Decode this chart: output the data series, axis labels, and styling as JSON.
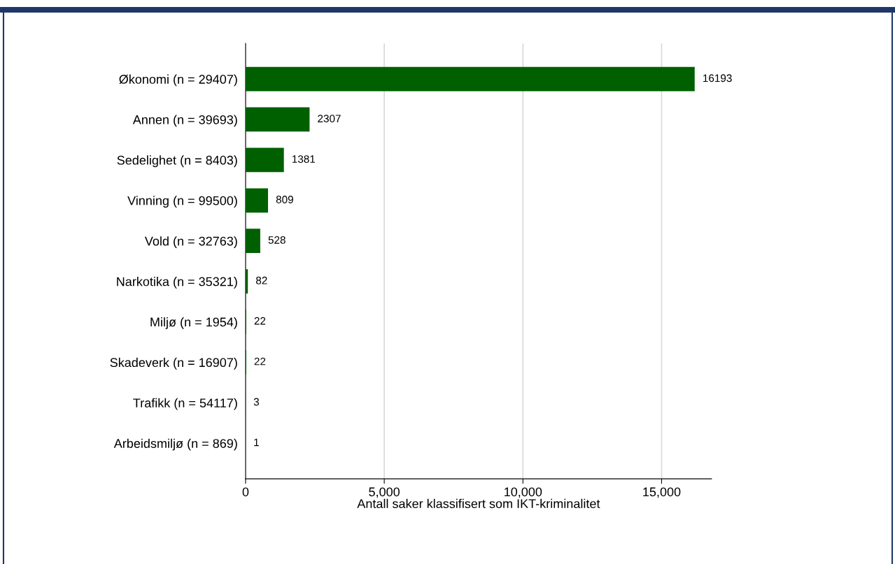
{
  "chart_data": {
    "type": "bar",
    "orientation": "horizontal",
    "categories": [
      "Økonomi (n = 29407)",
      "Annen (n = 39693)",
      "Sedelighet (n = 8403)",
      "Vinning (n = 99500)",
      "Vold (n = 32763)",
      "Narkotika (n = 35321)",
      "Miljø (n = 1954)",
      "Skadeverk (n = 16907)",
      "Trafikk (n = 54117)",
      "Arbeidsmiljø (n = 869)"
    ],
    "values": [
      16193,
      2307,
      1381,
      809,
      528,
      82,
      22,
      22,
      3,
      1
    ],
    "color": "#006000",
    "xlabel": "Antall saker klassifisert som IKT-kriminalitet",
    "xlim": [
      0,
      16800
    ],
    "xticks": [
      {
        "value": 0,
        "label": "0"
      },
      {
        "value": 5000,
        "label": "5,000"
      },
      {
        "value": 10000,
        "label": "10,000"
      },
      {
        "value": 15000,
        "label": "15,000"
      }
    ],
    "grid": "x",
    "data_labels": true,
    "legend": false
  }
}
